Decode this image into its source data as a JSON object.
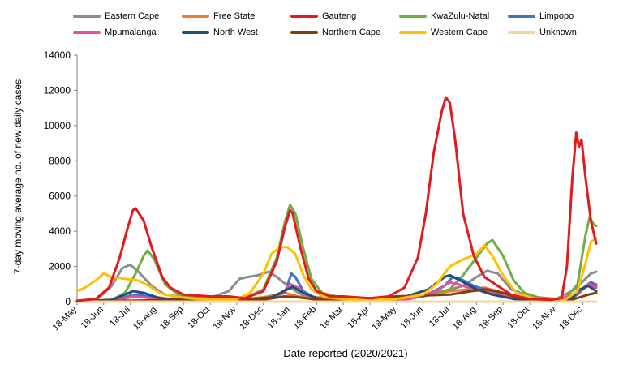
{
  "chart_data": {
    "type": "line",
    "xlabel": "Date reported (2020/2021)",
    "ylabel": "7-day moving average no. of new daily cases",
    "ylim": [
      0,
      14000
    ],
    "yticks": [
      "0",
      "2000",
      "4000",
      "6000",
      "8000",
      "10000",
      "12000",
      "14000"
    ],
    "xticks": [
      "18-May",
      "18-Jun",
      "18-Jul",
      "18-Aug",
      "18-Sep",
      "18-Oct",
      "18-Nov",
      "18-Dec",
      "18-Jan",
      "18-Feb",
      "18-Mar",
      "18-Apr",
      "18-May",
      "18-Jun",
      "18-Jul",
      "18-Aug",
      "18-Sep",
      "18-Oct",
      "18-Nov",
      "18-Dec"
    ],
    "grid": false,
    "legend_position": "top",
    "x_units": "months since 18-May-2020 (0 = 18-May-2020, 19 = 18-Dec-2021)",
    "series": [
      {
        "name": "Eastern Cape",
        "color": "#8c8c8c",
        "points": [
          [
            0,
            20
          ],
          [
            0.8,
            200
          ],
          [
            1.3,
            900
          ],
          [
            1.7,
            1900
          ],
          [
            2.0,
            2100
          ],
          [
            2.3,
            1700
          ],
          [
            2.8,
            900
          ],
          [
            3.3,
            400
          ],
          [
            4,
            250
          ],
          [
            5,
            220
          ],
          [
            5.7,
            600
          ],
          [
            6.1,
            1300
          ],
          [
            6.4,
            1400
          ],
          [
            6.8,
            1500
          ],
          [
            7.2,
            1700
          ],
          [
            7.5,
            1400
          ],
          [
            8,
            800
          ],
          [
            8.5,
            350
          ],
          [
            9,
            250
          ],
          [
            10,
            150
          ],
          [
            11,
            100
          ],
          [
            12,
            150
          ],
          [
            13,
            350
          ],
          [
            13.8,
            600
          ],
          [
            14.5,
            900
          ],
          [
            15,
            1400
          ],
          [
            15.4,
            1750
          ],
          [
            15.8,
            1600
          ],
          [
            16.3,
            700
          ],
          [
            17,
            300
          ],
          [
            18,
            150
          ],
          [
            18.7,
            700
          ],
          [
            19.3,
            1600
          ],
          [
            19.5,
            1700
          ]
        ]
      },
      {
        "name": "Free State",
        "color": "#ed7d31",
        "points": [
          [
            0,
            10
          ],
          [
            1.5,
            100
          ],
          [
            2.2,
            300
          ],
          [
            2.8,
            300
          ],
          [
            3.5,
            150
          ],
          [
            4,
            100
          ],
          [
            5,
            80
          ],
          [
            6,
            120
          ],
          [
            7,
            250
          ],
          [
            7.8,
            500
          ],
          [
            8.3,
            300
          ],
          [
            9,
            120
          ],
          [
            10,
            80
          ],
          [
            11,
            70
          ],
          [
            12,
            120
          ],
          [
            13,
            300
          ],
          [
            14,
            600
          ],
          [
            14.8,
            700
          ],
          [
            15.3,
            800
          ],
          [
            16,
            500
          ],
          [
            16.8,
            200
          ],
          [
            17.5,
            80
          ],
          [
            18,
            60
          ],
          [
            18.8,
            400
          ],
          [
            19.3,
            1100
          ],
          [
            19.5,
            1000
          ]
        ]
      },
      {
        "name": "Gauteng",
        "color": "#e31a1c",
        "points": [
          [
            0,
            50
          ],
          [
            0.7,
            150
          ],
          [
            1.2,
            800
          ],
          [
            1.6,
            2500
          ],
          [
            1.9,
            4200
          ],
          [
            2.1,
            5200
          ],
          [
            2.2,
            5300
          ],
          [
            2.5,
            4600
          ],
          [
            2.8,
            3100
          ],
          [
            3.2,
            1400
          ],
          [
            3.5,
            800
          ],
          [
            4,
            400
          ],
          [
            5,
            300
          ],
          [
            5.7,
            300
          ],
          [
            6.3,
            200
          ],
          [
            7,
            600
          ],
          [
            7.5,
            2300
          ],
          [
            7.8,
            4200
          ],
          [
            8.0,
            5200
          ],
          [
            8.1,
            5000
          ],
          [
            8.4,
            3000
          ],
          [
            8.7,
            1300
          ],
          [
            9,
            600
          ],
          [
            9.5,
            300
          ],
          [
            10,
            300
          ],
          [
            11,
            200
          ],
          [
            11.7,
            300
          ],
          [
            12.3,
            800
          ],
          [
            12.8,
            2500
          ],
          [
            13.1,
            5000
          ],
          [
            13.4,
            8500
          ],
          [
            13.7,
            10800
          ],
          [
            13.85,
            11600
          ],
          [
            14.0,
            11300
          ],
          [
            14.2,
            9200
          ],
          [
            14.5,
            5000
          ],
          [
            14.9,
            2600
          ],
          [
            15.3,
            1400
          ],
          [
            15.8,
            900
          ],
          [
            16.3,
            400
          ],
          [
            17,
            150
          ],
          [
            17.8,
            100
          ],
          [
            18.2,
            200
          ],
          [
            18.4,
            2000
          ],
          [
            18.6,
            7000
          ],
          [
            18.75,
            9600
          ],
          [
            18.85,
            8800
          ],
          [
            18.95,
            9200
          ],
          [
            19.1,
            7000
          ],
          [
            19.3,
            4600
          ],
          [
            19.5,
            3300
          ]
        ]
      },
      {
        "name": "KwaZulu-Natal",
        "color": "#70ad47",
        "points": [
          [
            0,
            10
          ],
          [
            1.3,
            100
          ],
          [
            1.8,
            500
          ],
          [
            2.2,
            1600
          ],
          [
            2.5,
            2600
          ],
          [
            2.65,
            2900
          ],
          [
            2.9,
            2400
          ],
          [
            3.3,
            1000
          ],
          [
            3.8,
            400
          ],
          [
            4.5,
            200
          ],
          [
            5.5,
            150
          ],
          [
            6.3,
            200
          ],
          [
            7,
            700
          ],
          [
            7.5,
            2500
          ],
          [
            7.8,
            4500
          ],
          [
            8.0,
            5500
          ],
          [
            8.2,
            5000
          ],
          [
            8.5,
            3000
          ],
          [
            8.8,
            1300
          ],
          [
            9.2,
            500
          ],
          [
            10,
            200
          ],
          [
            11,
            100
          ],
          [
            12,
            100
          ],
          [
            13,
            300
          ],
          [
            14,
            700
          ],
          [
            14.5,
            1500
          ],
          [
            15.0,
            2500
          ],
          [
            15.4,
            3300
          ],
          [
            15.6,
            3500
          ],
          [
            16.0,
            2600
          ],
          [
            16.4,
            1200
          ],
          [
            16.8,
            500
          ],
          [
            17.5,
            150
          ],
          [
            18.3,
            100
          ],
          [
            18.8,
            1000
          ],
          [
            19.1,
            3800
          ],
          [
            19.25,
            4800
          ],
          [
            19.4,
            4400
          ],
          [
            19.5,
            4300
          ]
        ]
      },
      {
        "name": "Limpopo",
        "color": "#4472c4",
        "points": [
          [
            0,
            10
          ],
          [
            1.5,
            80
          ],
          [
            2.0,
            350
          ],
          [
            2.3,
            400
          ],
          [
            2.8,
            250
          ],
          [
            3.5,
            100
          ],
          [
            5,
            60
          ],
          [
            7,
            80
          ],
          [
            7.8,
            500
          ],
          [
            8.05,
            1600
          ],
          [
            8.2,
            1400
          ],
          [
            8.5,
            600
          ],
          [
            9,
            150
          ],
          [
            10,
            60
          ],
          [
            12,
            80
          ],
          [
            13,
            300
          ],
          [
            13.8,
            900
          ],
          [
            14.1,
            1400
          ],
          [
            14.4,
            1300
          ],
          [
            14.9,
            900
          ],
          [
            15.5,
            600
          ],
          [
            16,
            300
          ],
          [
            16.8,
            80
          ],
          [
            18,
            60
          ],
          [
            18.7,
            300
          ],
          [
            19.1,
            900
          ],
          [
            19.3,
            1100
          ],
          [
            19.5,
            900
          ]
        ]
      },
      {
        "name": "Mpumalanga",
        "color": "#e84fa1",
        "points": [
          [
            0,
            10
          ],
          [
            1.5,
            80
          ],
          [
            2.1,
            300
          ],
          [
            2.5,
            250
          ],
          [
            3.2,
            120
          ],
          [
            5,
            60
          ],
          [
            7,
            90
          ],
          [
            7.7,
            450
          ],
          [
            8.0,
            1000
          ],
          [
            8.3,
            800
          ],
          [
            8.7,
            300
          ],
          [
            9.5,
            90
          ],
          [
            11,
            60
          ],
          [
            12.5,
            150
          ],
          [
            13.5,
            600
          ],
          [
            14,
            1100
          ],
          [
            14.3,
            1000
          ],
          [
            14.9,
            700
          ],
          [
            15.5,
            550
          ],
          [
            16.1,
            300
          ],
          [
            16.8,
            90
          ],
          [
            18,
            60
          ],
          [
            18.8,
            500
          ],
          [
            19.2,
            1000
          ],
          [
            19.4,
            850
          ],
          [
            19.5,
            800
          ]
        ]
      },
      {
        "name": "North West",
        "color": "#1f4e79",
        "points": [
          [
            0,
            10
          ],
          [
            1.3,
            100
          ],
          [
            1.8,
            400
          ],
          [
            2.1,
            600
          ],
          [
            2.5,
            500
          ],
          [
            3.1,
            200
          ],
          [
            4,
            80
          ],
          [
            6,
            80
          ],
          [
            7.3,
            250
          ],
          [
            7.9,
            700
          ],
          [
            8.1,
            850
          ],
          [
            8.5,
            500
          ],
          [
            9,
            200
          ],
          [
            10,
            80
          ],
          [
            12,
            120
          ],
          [
            13.2,
            700
          ],
          [
            13.8,
            1400
          ],
          [
            14.0,
            1500
          ],
          [
            14.4,
            1200
          ],
          [
            15.0,
            700
          ],
          [
            15.6,
            400
          ],
          [
            16.4,
            150
          ],
          [
            17.5,
            50
          ],
          [
            18.5,
            80
          ],
          [
            18.9,
            700
          ],
          [
            19.2,
            900
          ],
          [
            19.4,
            700
          ],
          [
            19.5,
            600
          ]
        ]
      },
      {
        "name": "Northern Cape",
        "color": "#843c0c",
        "points": [
          [
            0,
            10
          ],
          [
            1.5,
            40
          ],
          [
            3,
            80
          ],
          [
            4,
            120
          ],
          [
            5,
            150
          ],
          [
            6,
            120
          ],
          [
            7,
            120
          ],
          [
            7.8,
            300
          ],
          [
            8.3,
            250
          ],
          [
            9,
            120
          ],
          [
            10,
            150
          ],
          [
            11,
            200
          ],
          [
            12,
            300
          ],
          [
            13,
            350
          ],
          [
            14,
            400
          ],
          [
            14.8,
            600
          ],
          [
            15.4,
            700
          ],
          [
            16,
            500
          ],
          [
            16.6,
            200
          ],
          [
            17.5,
            80
          ],
          [
            18.5,
            70
          ],
          [
            19.2,
            400
          ],
          [
            19.5,
            500
          ]
        ]
      },
      {
        "name": "Western Cape",
        "color": "#ffc000",
        "points": [
          [
            0,
            600
          ],
          [
            0.3,
            800
          ],
          [
            0.7,
            1200
          ],
          [
            1.0,
            1600
          ],
          [
            1.3,
            1400
          ],
          [
            1.8,
            1300
          ],
          [
            2.3,
            1200
          ],
          [
            2.7,
            900
          ],
          [
            3.1,
            500
          ],
          [
            3.6,
            300
          ],
          [
            4.5,
            150
          ],
          [
            6,
            130
          ],
          [
            6.5,
            500
          ],
          [
            7.0,
            1600
          ],
          [
            7.3,
            2700
          ],
          [
            7.6,
            3100
          ],
          [
            7.9,
            3100
          ],
          [
            8.2,
            2700
          ],
          [
            8.5,
            1500
          ],
          [
            8.8,
            700
          ],
          [
            9.3,
            250
          ],
          [
            10,
            150
          ],
          [
            11,
            100
          ],
          [
            12,
            150
          ],
          [
            13,
            400
          ],
          [
            13.5,
            1000
          ],
          [
            14.0,
            2000
          ],
          [
            14.5,
            2400
          ],
          [
            15.0,
            2700
          ],
          [
            15.3,
            3200
          ],
          [
            15.6,
            2600
          ],
          [
            16.0,
            1500
          ],
          [
            16.5,
            500
          ],
          [
            17.2,
            150
          ],
          [
            18.3,
            80
          ],
          [
            18.8,
            600
          ],
          [
            19.1,
            2200
          ],
          [
            19.3,
            3400
          ],
          [
            19.5,
            3600
          ]
        ]
      },
      {
        "name": "Unknown",
        "color": "#f6d59a",
        "points": [
          [
            0,
            0
          ],
          [
            19.5,
            0
          ]
        ]
      }
    ]
  }
}
